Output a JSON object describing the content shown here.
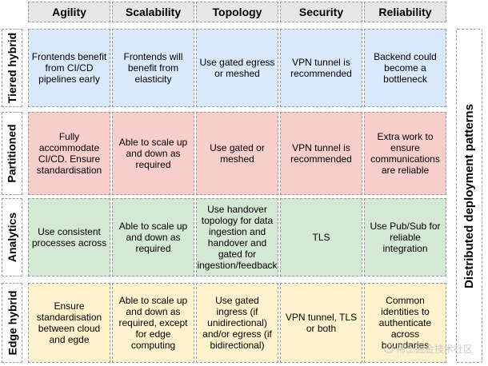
{
  "columns": [
    "Agility",
    "Scalability",
    "Topology",
    "Security",
    "Reliability"
  ],
  "rows": [
    {
      "label": "Tiered hybrid",
      "color": "#dae8fc",
      "cells": [
        "Frontends benefit from CI/CD pipelines early",
        "Frontends will benefit from elasticity",
        "Use gated egress or meshed",
        "VPN tunnel is recommended",
        "Backend could become a bottleneck"
      ]
    },
    {
      "label": "Partitioned",
      "color": "#f8cecc",
      "cells": [
        "Fully accommodate CI/CD. Ensure standardisation",
        "Able to scale up and down as required",
        "Use gated or meshed",
        "VPN tunnel is recommended",
        "Extra work to ensure communications are reliable"
      ]
    },
    {
      "label": "Analytics",
      "color": "#d5e8d4",
      "cells": [
        "Use consistent processes across",
        "Able to scale up and down as required",
        "Use handover topology for data ingestion and handover and gated for ingestion/feedback",
        "TLS",
        "Use Pub/Sub for reliable integration"
      ]
    },
    {
      "label": "Edge hybrid",
      "color": "#fff2cc",
      "cells": [
        "Ensure standardisation between cloud and egde",
        "Able to scale up and down as required, except for edge computing",
        "Use gated ingress (if unidirectional) and/or egress (if bidirectional)",
        "VPN tunnel, TLS or both",
        "Common identities to authenticate across boundaries"
      ]
    }
  ],
  "side_label": "Distributed deployment patterns",
  "watermark": "稀土掘金技术社区",
  "colors": {
    "header_bg": "#e6e6e6",
    "border": "#9a9a9a"
  }
}
